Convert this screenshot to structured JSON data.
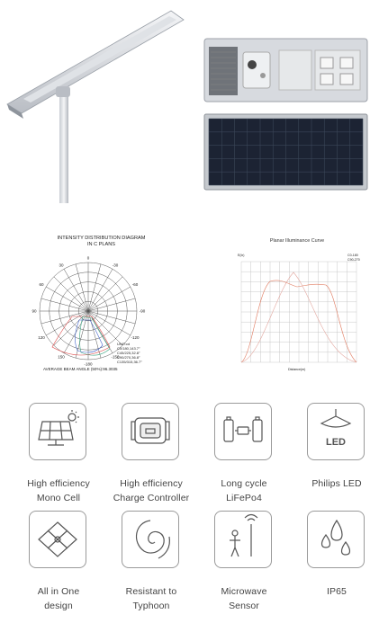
{
  "photos": {
    "pole_alt": "All-in-one solar street light on pole",
    "bottom_alt": "Light fixture bottom view",
    "panel_alt": "Monocrystalline solar panel"
  },
  "polar_diagram": {
    "title_line1": "INTENSITY DISTRIBUTION DIAGRAM",
    "title_line2": "IN C PLANS",
    "angle_labels": [
      "-180",
      "-150",
      "-120",
      "-90",
      "-60",
      "-30",
      "0",
      "30",
      "60",
      "90",
      "120",
      "150"
    ],
    "unit_label": "UNIT:cd",
    "legend": [
      "C0/180,143.7°",
      "C45/225,32.8°",
      "C90/270,36.8°",
      "C135/315,36.7°"
    ],
    "footer": "AVERAGE BEAM ANGLE (50%):96.3035"
  },
  "illum_chart": {
    "title": "Planar Illuminance Curve",
    "ylabel": "E(lx)",
    "legend": [
      "C0-180",
      "C90-270"
    ],
    "xlabel": "Distance(m)"
  },
  "features": [
    {
      "label1": "High efficiency",
      "label2": "Mono Cell",
      "icon": "solar-cell-icon"
    },
    {
      "label1": "High efficiency",
      "label2": "Charge Controller",
      "icon": "charge-controller-icon"
    },
    {
      "label1": "Long cycle",
      "label2": "LiFePo4",
      "icon": "battery-icon"
    },
    {
      "label1": "Philips LED",
      "label2": "",
      "icon": "led-lamp-icon"
    },
    {
      "label1": "All in One",
      "label2": "design",
      "icon": "puzzle-icon"
    },
    {
      "label1": "Resistant to",
      "label2": "Typhoon",
      "icon": "typhoon-icon"
    },
    {
      "label1": "Microwave",
      "label2": "Sensor",
      "icon": "microwave-sensor-icon"
    },
    {
      "label1": "IP65",
      "label2": "",
      "icon": "water-drops-icon"
    }
  ],
  "colors": {
    "icon_border": "#9a9a9a",
    "icon_stroke": "#555555",
    "text": "#444444"
  }
}
